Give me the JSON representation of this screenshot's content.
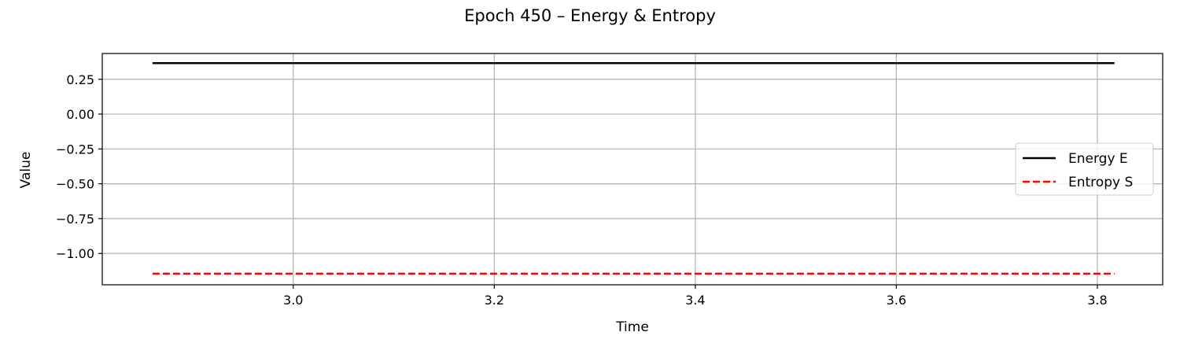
{
  "chart_data": {
    "type": "line",
    "title": "Epoch 450 – Energy & Entropy",
    "xlabel": "Time",
    "ylabel": "Value",
    "xlim": [
      2.81,
      3.865
    ],
    "ylim": [
      -1.225,
      0.435
    ],
    "grid": true,
    "legend_position": "center-right",
    "x_ticks": [
      3.0,
      3.2,
      3.4,
      3.6,
      3.8
    ],
    "x_tick_labels": [
      "3.0",
      "3.2",
      "3.4",
      "3.6",
      "3.8"
    ],
    "y_ticks": [
      0.25,
      0.0,
      -0.25,
      -0.5,
      -0.75,
      -1.0
    ],
    "y_tick_labels": [
      "0.25",
      "0.00",
      "−0.25",
      "−0.50",
      "−0.75",
      "−1.00"
    ],
    "series": [
      {
        "name": "Energy E",
        "color": "#000000",
        "linestyle": "solid",
        "x": [
          2.86,
          3.817
        ],
        "y": [
          0.366,
          0.366
        ]
      },
      {
        "name": "Entropy S",
        "color": "#ff0000",
        "linestyle": "dashed",
        "x": [
          2.86,
          3.817
        ],
        "y": [
          -1.145,
          -1.145
        ]
      }
    ]
  }
}
